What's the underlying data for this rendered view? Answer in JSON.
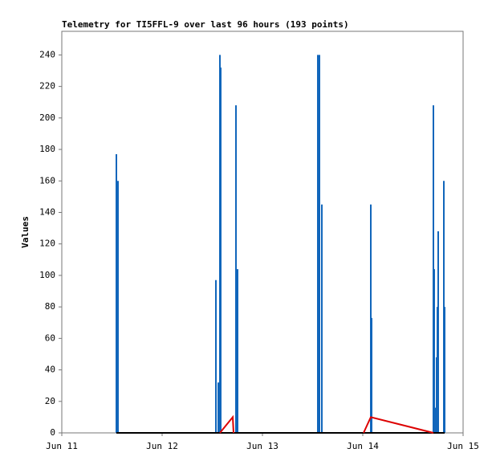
{
  "chart_data": {
    "type": "line",
    "title": "Telemetry for TI5FFL-9 over last 96 hours (193 points)",
    "y_label": "Values",
    "xlim": [
      0,
      4
    ],
    "xticks": [
      {
        "value": 0,
        "label": "Jun 11"
      },
      {
        "value": 1,
        "label": "Jun 12"
      },
      {
        "value": 2,
        "label": "Jun 13"
      },
      {
        "value": 3,
        "label": "Jun 14"
      },
      {
        "value": 4,
        "label": "Jun 15"
      }
    ],
    "ylim": [
      0,
      255
    ],
    "yticks": [
      0,
      20,
      40,
      60,
      80,
      100,
      120,
      140,
      160,
      180,
      200,
      220,
      240
    ],
    "series": [
      {
        "style": "impulse",
        "color": "#1166bb",
        "x": [
          0.544,
          0.56,
          1.536,
          1.56,
          1.576,
          1.584,
          1.736,
          1.752,
          2.552,
          2.568,
          2.592,
          3.08,
          3.088,
          3.704,
          3.712,
          3.728,
          3.736,
          3.744,
          3.752,
          3.808,
          3.816
        ],
        "values": [
          177,
          160,
          97,
          32,
          240,
          232,
          208,
          104,
          240,
          240,
          145,
          145,
          73,
          208,
          104,
          16,
          48,
          80,
          128,
          160,
          80
        ]
      },
      {
        "style": "line",
        "color": "#000000",
        "x": [
          0.544,
          3.816
        ],
        "values": [
          0,
          0
        ]
      },
      {
        "style": "line",
        "color": "#dd0000",
        "x": [
          1.576,
          1.704,
          1.712,
          1.72,
          3.008,
          3.08,
          3.704
        ],
        "values": [
          0,
          10,
          0,
          null,
          0,
          10,
          0
        ]
      }
    ]
  }
}
